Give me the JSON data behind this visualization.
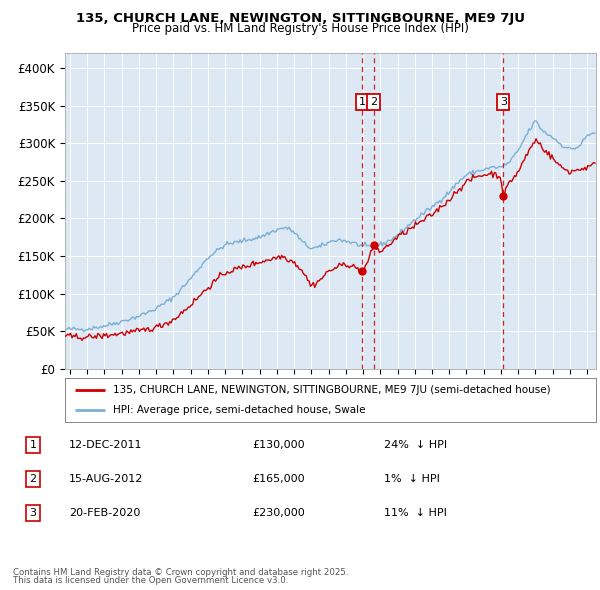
{
  "title_line1": "135, CHURCH LANE, NEWINGTON, SITTINGBOURNE, ME9 7JU",
  "title_line2": "Price paid vs. HM Land Registry's House Price Index (HPI)",
  "background_color": "#ffffff",
  "plot_bg_color": "#dce9f5",
  "hpi_color": "#7bafd4",
  "price_color": "#cc0000",
  "ytick_labels": [
    "£0",
    "£50K",
    "£100K",
    "£150K",
    "£200K",
    "£250K",
    "£300K",
    "£350K",
    "£400K"
  ],
  "ytick_values": [
    0,
    50000,
    100000,
    150000,
    200000,
    250000,
    300000,
    350000,
    400000
  ],
  "ylim": [
    0,
    420000
  ],
  "xlim_start": 1994.7,
  "xlim_end": 2025.5,
  "transactions": [
    {
      "id": 1,
      "date_num": 2011.96,
      "price": 130000,
      "label": "12-DEC-2011",
      "pct": "24%",
      "dir": "↓"
    },
    {
      "id": 2,
      "date_num": 2012.62,
      "price": 165000,
      "label": "15-AUG-2012",
      "pct": "1%",
      "dir": "↓"
    },
    {
      "id": 3,
      "date_num": 2020.13,
      "price": 230000,
      "label": "20-FEB-2020",
      "pct": "11%",
      "dir": "↓"
    }
  ],
  "legend_entries": [
    "135, CHURCH LANE, NEWINGTON, SITTINGBOURNE, ME9 7JU (semi-detached house)",
    "HPI: Average price, semi-detached house, Swale"
  ],
  "footer_line1": "Contains HM Land Registry data © Crown copyright and database right 2025.",
  "footer_line2": "This data is licensed under the Open Government Licence v3.0.",
  "hpi_anchors": [
    [
      1994.7,
      52000
    ],
    [
      1995.0,
      53000
    ],
    [
      1995.5,
      52500
    ],
    [
      1996.0,
      53000
    ],
    [
      1997.0,
      57000
    ],
    [
      1998.0,
      63000
    ],
    [
      1999.0,
      70000
    ],
    [
      2000.0,
      80000
    ],
    [
      2001.0,
      95000
    ],
    [
      2002.0,
      120000
    ],
    [
      2003.0,
      148000
    ],
    [
      2004.0,
      165000
    ],
    [
      2005.0,
      170000
    ],
    [
      2006.0,
      175000
    ],
    [
      2007.0,
      185000
    ],
    [
      2007.5,
      188000
    ],
    [
      2008.0,
      182000
    ],
    [
      2008.5,
      168000
    ],
    [
      2009.0,
      160000
    ],
    [
      2009.5,
      162000
    ],
    [
      2010.0,
      168000
    ],
    [
      2010.5,
      172000
    ],
    [
      2011.0,
      170000
    ],
    [
      2011.5,
      167000
    ],
    [
      2012.0,
      163000
    ],
    [
      2012.5,
      162000
    ],
    [
      2013.0,
      165000
    ],
    [
      2013.5,
      170000
    ],
    [
      2014.0,
      178000
    ],
    [
      2015.0,
      198000
    ],
    [
      2016.0,
      215000
    ],
    [
      2017.0,
      235000
    ],
    [
      2017.5,
      248000
    ],
    [
      2018.0,
      258000
    ],
    [
      2018.5,
      262000
    ],
    [
      2019.0,
      265000
    ],
    [
      2019.5,
      268000
    ],
    [
      2020.0,
      268000
    ],
    [
      2020.5,
      275000
    ],
    [
      2021.0,
      290000
    ],
    [
      2021.5,
      312000
    ],
    [
      2022.0,
      330000
    ],
    [
      2022.3,
      320000
    ],
    [
      2022.5,
      315000
    ],
    [
      2023.0,
      308000
    ],
    [
      2023.5,
      298000
    ],
    [
      2024.0,
      292000
    ],
    [
      2024.5,
      295000
    ],
    [
      2025.0,
      310000
    ],
    [
      2025.5,
      315000
    ]
  ],
  "price_anchors": [
    [
      1994.7,
      43000
    ],
    [
      1995.0,
      43000
    ],
    [
      1995.5,
      42000
    ],
    [
      1996.0,
      42000
    ],
    [
      1997.0,
      44000
    ],
    [
      1998.0,
      47000
    ],
    [
      1999.0,
      50000
    ],
    [
      2000.0,
      55000
    ],
    [
      2001.0,
      65000
    ],
    [
      2002.0,
      85000
    ],
    [
      2003.0,
      108000
    ],
    [
      2004.0,
      128000
    ],
    [
      2005.0,
      135000
    ],
    [
      2006.0,
      142000
    ],
    [
      2007.0,
      148000
    ],
    [
      2007.3,
      150000
    ],
    [
      2008.0,
      142000
    ],
    [
      2008.5,
      130000
    ],
    [
      2009.0,
      110000
    ],
    [
      2009.5,
      118000
    ],
    [
      2010.0,
      130000
    ],
    [
      2010.5,
      135000
    ],
    [
      2011.0,
      140000
    ],
    [
      2011.5,
      135000
    ],
    [
      2011.96,
      130000
    ],
    [
      2012.0,
      128000
    ],
    [
      2012.5,
      155000
    ],
    [
      2012.62,
      165000
    ],
    [
      2013.0,
      155000
    ],
    [
      2013.5,
      165000
    ],
    [
      2014.0,
      175000
    ],
    [
      2015.0,
      190000
    ],
    [
      2016.0,
      205000
    ],
    [
      2017.0,
      225000
    ],
    [
      2017.5,
      238000
    ],
    [
      2018.0,
      248000
    ],
    [
      2018.5,
      255000
    ],
    [
      2019.0,
      258000
    ],
    [
      2019.5,
      260000
    ],
    [
      2020.0,
      255000
    ],
    [
      2020.13,
      230000
    ],
    [
      2020.5,
      248000
    ],
    [
      2021.0,
      262000
    ],
    [
      2021.5,
      285000
    ],
    [
      2022.0,
      305000
    ],
    [
      2022.3,
      298000
    ],
    [
      2022.5,
      292000
    ],
    [
      2023.0,
      280000
    ],
    [
      2023.5,
      268000
    ],
    [
      2024.0,
      262000
    ],
    [
      2024.5,
      265000
    ],
    [
      2025.0,
      268000
    ],
    [
      2025.5,
      272000
    ]
  ]
}
